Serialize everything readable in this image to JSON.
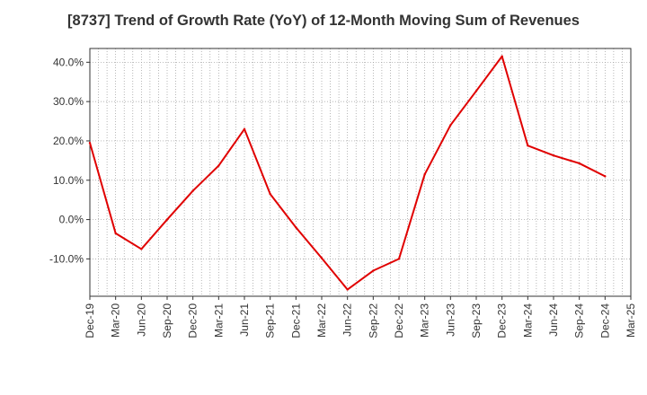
{
  "chart_data": {
    "type": "line",
    "title": "[8737]  Trend of Growth Rate (YoY) of 12-Month Moving Sum of Revenues",
    "xlabel": "",
    "ylabel": "",
    "x": [
      "Dec-19",
      "Mar-20",
      "Jun-20",
      "Sep-20",
      "Dec-20",
      "Mar-21",
      "Jun-21",
      "Sep-21",
      "Dec-21",
      "Mar-22",
      "Jun-22",
      "Sep-22",
      "Dec-22",
      "Mar-23",
      "Jun-23",
      "Sep-23",
      "Dec-23",
      "Mar-24",
      "Jun-24",
      "Sep-24",
      "Dec-24",
      "Mar-25"
    ],
    "series": [
      {
        "name": "",
        "color": "#e00000",
        "values": [
          19.5,
          -3.5,
          -7.5,
          0.0,
          7.3,
          13.7,
          23.0,
          6.5,
          -2.0,
          -9.8,
          -17.8,
          -13.0,
          -10.0,
          11.5,
          24.0,
          32.7,
          41.5,
          18.8,
          16.3,
          14.3,
          11.0,
          null
        ]
      }
    ],
    "y_ticks": [
      "-10.0%",
      "0.0%",
      "10.0%",
      "20.0%",
      "30.0%",
      "40.0%"
    ],
    "y_tick_values": [
      -10,
      0,
      10,
      20,
      30,
      40
    ],
    "ylim": [
      -19.5,
      43.5
    ],
    "grid": true,
    "minor_x_grid_per_tick": 3
  }
}
